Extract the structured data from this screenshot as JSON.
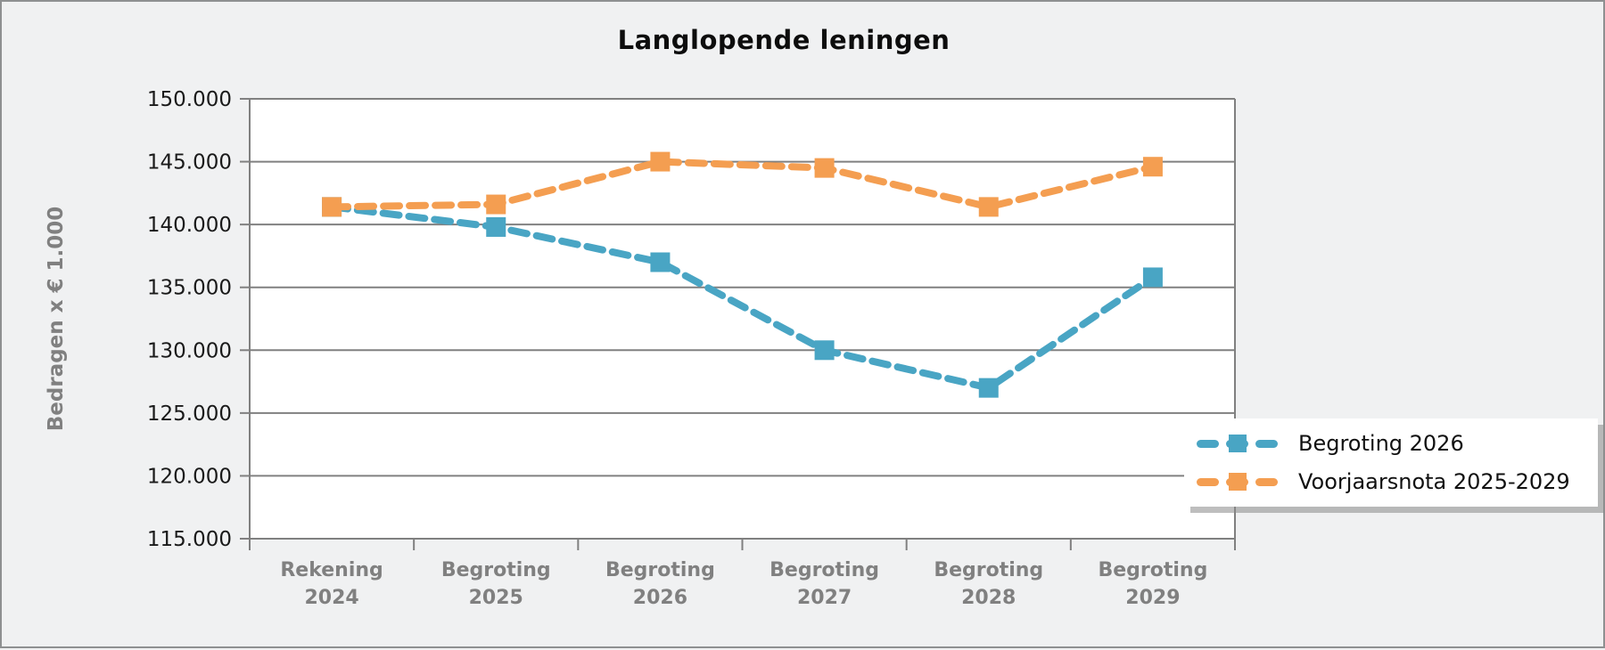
{
  "chart_data": {
    "type": "line",
    "title": "Langlopende leningen",
    "ylabel": "Bedragen x € 1.000",
    "xlabel": "",
    "categories": [
      "Rekening 2024",
      "Begroting 2025",
      "Begroting 2026",
      "Begroting 2027",
      "Begroting 2028",
      "Begroting 2029"
    ],
    "ylim": [
      115000,
      150000
    ],
    "ytick_step": 5000,
    "ytick_labels": [
      "115.000",
      "120.000",
      "125.000",
      "130.000",
      "135.000",
      "140.000",
      "145.000",
      "150.000"
    ],
    "grid": true,
    "line_style": "dashed",
    "marker": "square",
    "legend_position": "bottom-right-overlay",
    "series": [
      {
        "name": "Begroting 2026",
        "color": "#49A5C4",
        "values": [
          141400,
          139800,
          137000,
          130000,
          127000,
          135800
        ]
      },
      {
        "name": "Voorjaarsnota 2025-2029",
        "color": "#F49E51",
        "values": [
          141400,
          141600,
          145000,
          144500,
          141400,
          144600
        ]
      }
    ],
    "styles": {
      "grid_color": "#808080",
      "axis_text_color": "#1a1a1a",
      "axis_title_color": "#808080",
      "plot_background": "#ffffff",
      "page_background": "#f0f1f2"
    }
  }
}
